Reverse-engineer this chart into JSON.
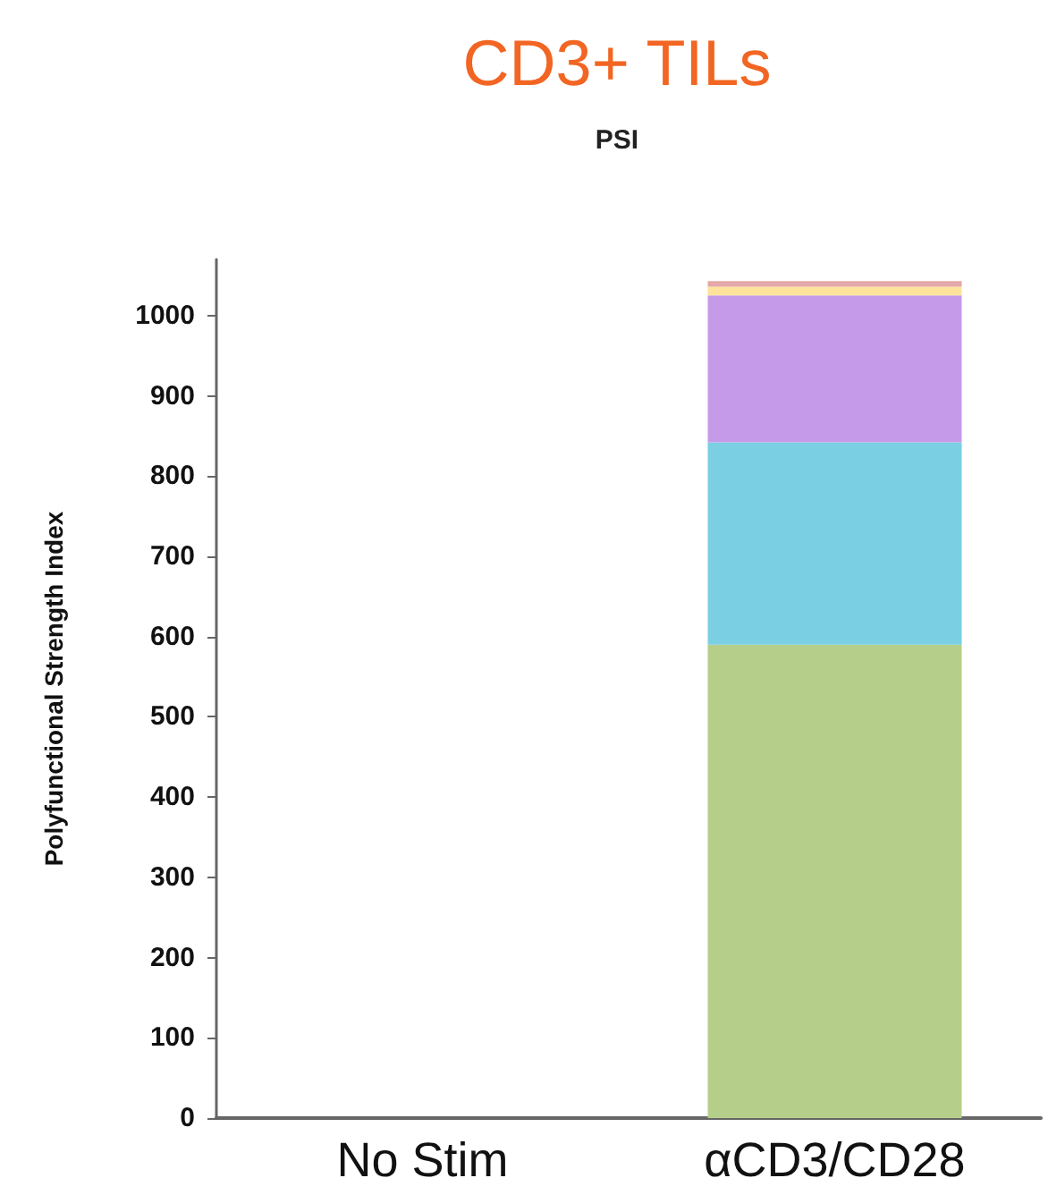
{
  "chart_data": {
    "type": "bar",
    "title": "CD3+ TILs",
    "subtitle": "PSI",
    "ylabel": "Polyfunctional Strength Index",
    "categories": [
      "No Stim",
      "αCD3/CD28"
    ],
    "stacked": true,
    "series": [
      {
        "color": "#b5cf8a",
        "values": [
          0,
          590
        ]
      },
      {
        "color": "#7acfe2",
        "values": [
          0,
          252
        ]
      },
      {
        "color": "#c59be9",
        "values": [
          0,
          183
        ]
      },
      {
        "color": "#fde39b",
        "values": [
          0,
          11
        ]
      },
      {
        "color": "#e4a8a8",
        "values": [
          0,
          7
        ]
      }
    ],
    "ylim": [
      0,
      1070
    ],
    "yticks": [
      0,
      100,
      200,
      300,
      400,
      500,
      600,
      700,
      800,
      900,
      1000
    ],
    "grid": false
  }
}
